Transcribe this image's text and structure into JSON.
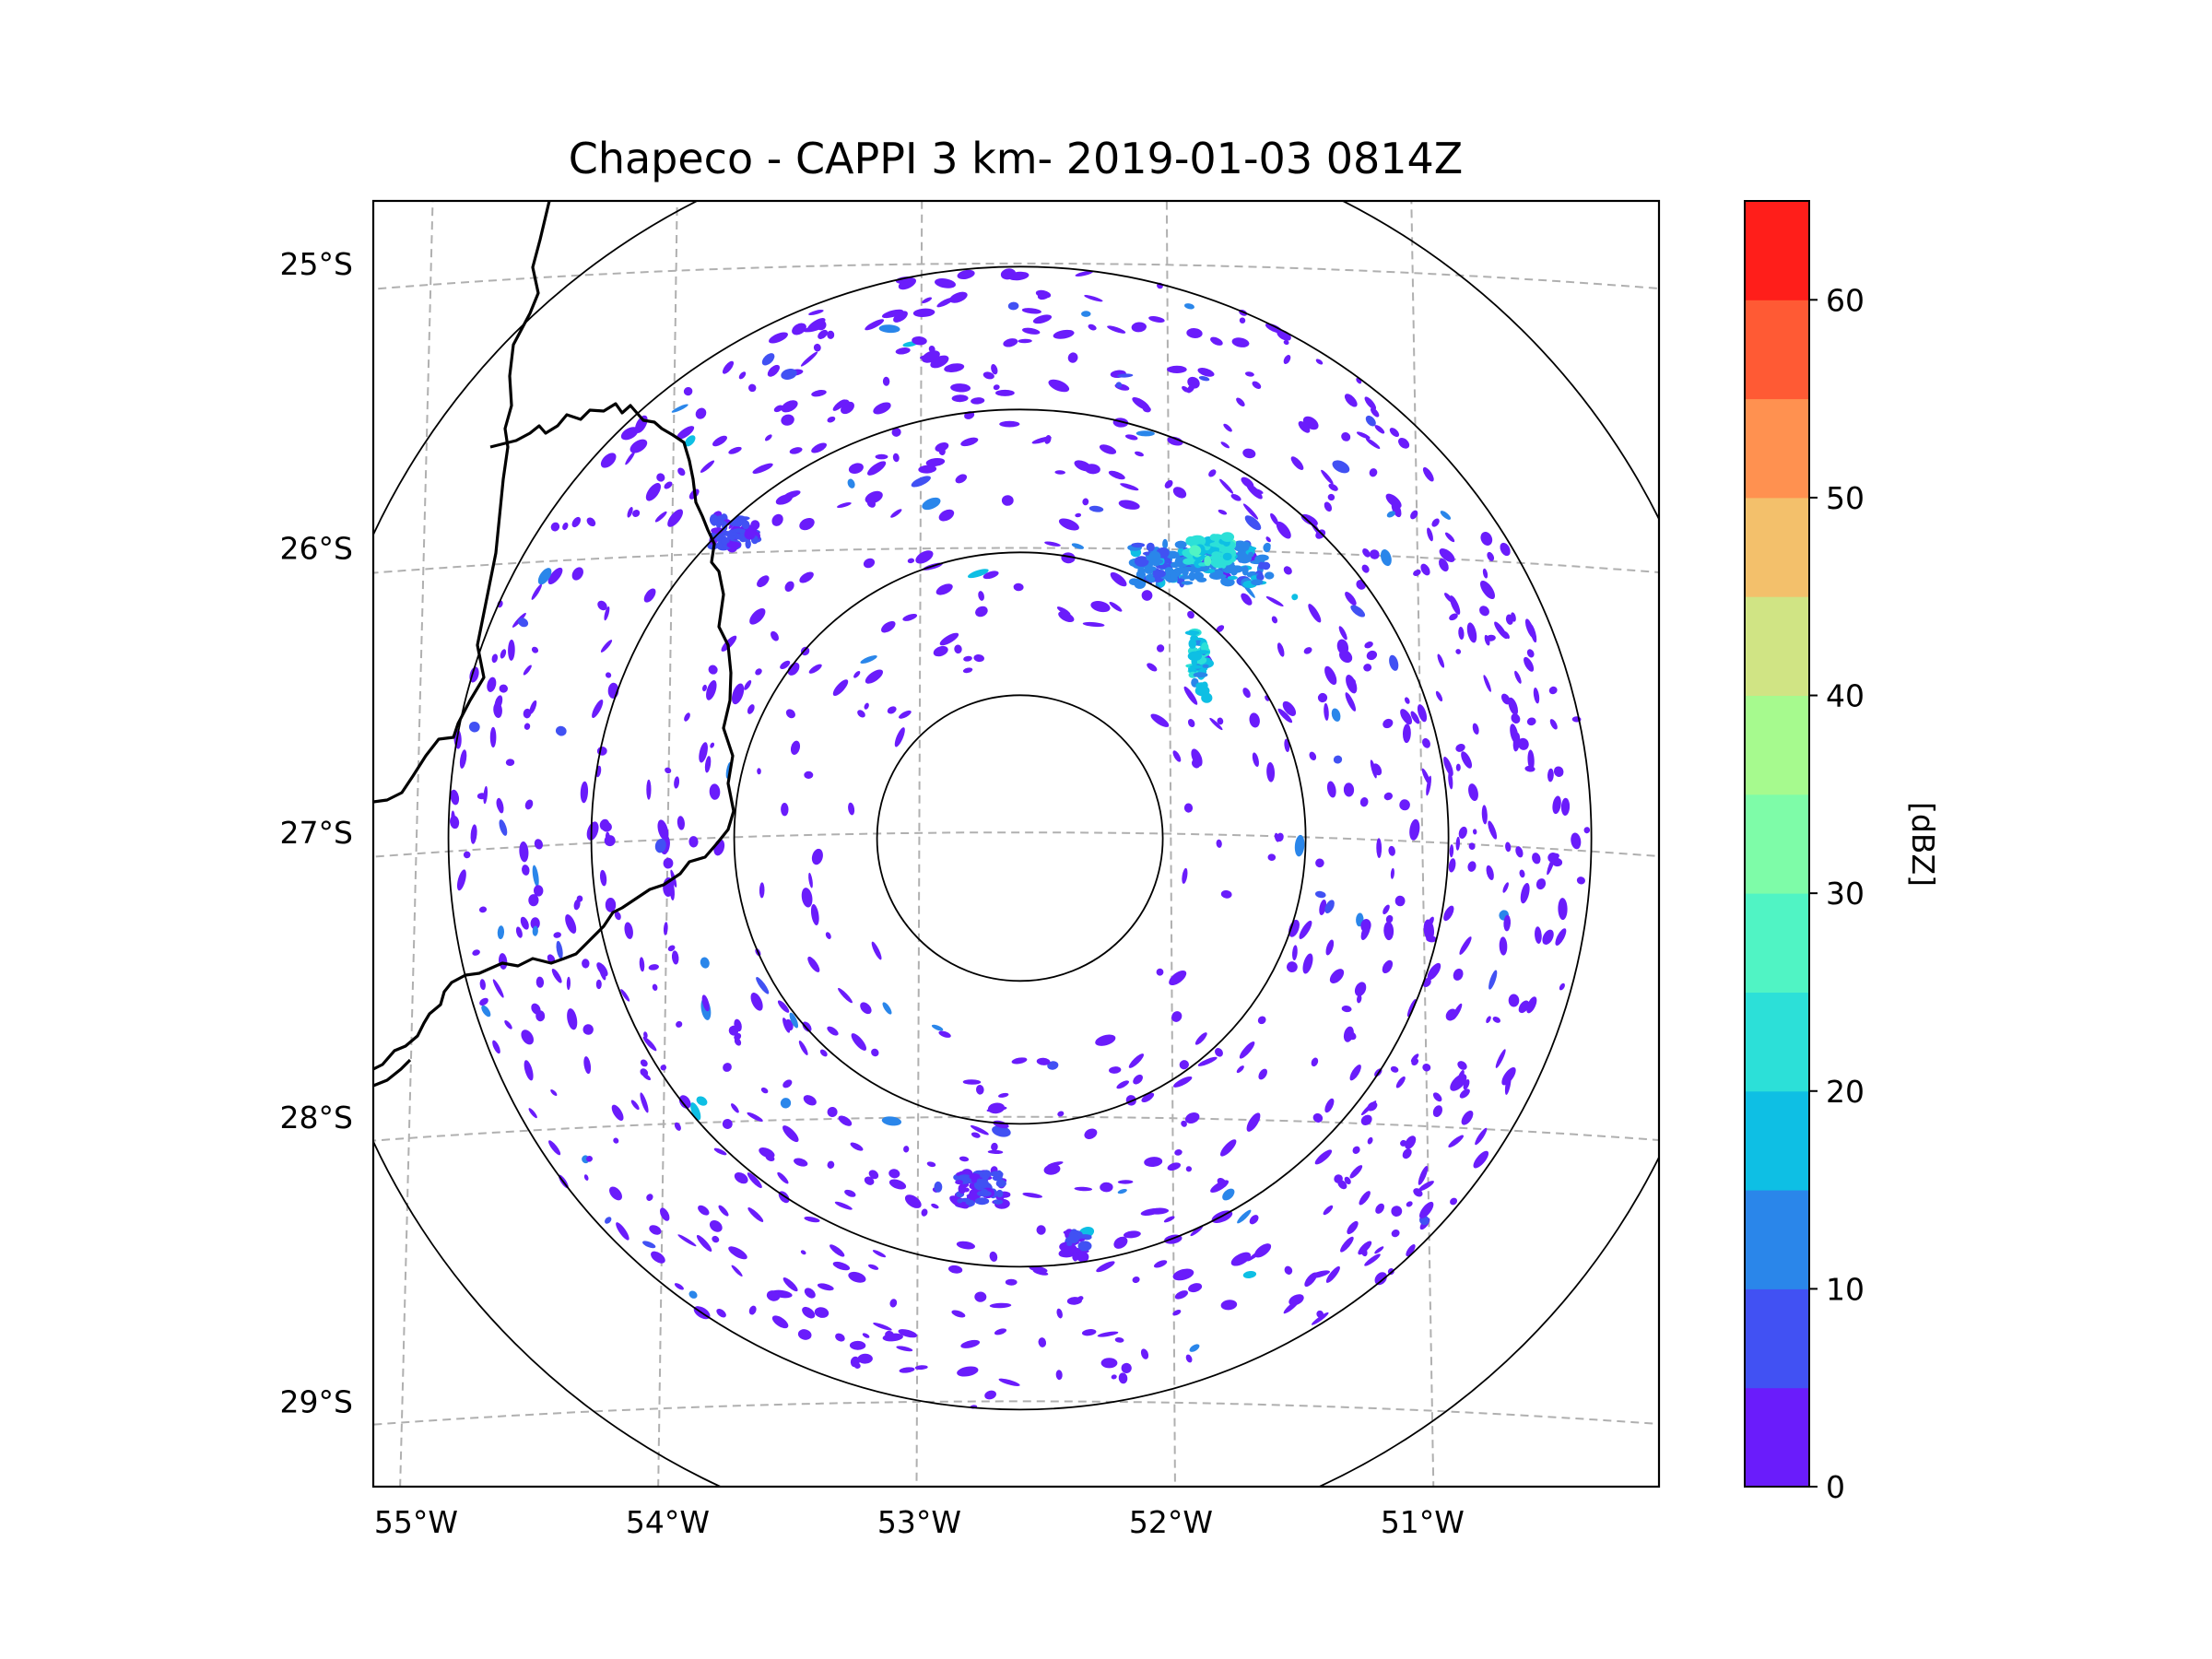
{
  "title": "Chapeco - CAPPI 3 km- 2019-01-03 0814Z",
  "map": {
    "lat_range": [
      -29.3,
      -24.78
    ],
    "lon_range": [
      -55.17,
      -50.06
    ],
    "radar_site": {
      "lon": -52.6,
      "lat": -27.02
    },
    "range_rings_km": [
      50,
      100,
      150,
      200,
      250
    ],
    "lat_labels": [
      {
        "value": -25,
        "text": "25°S"
      },
      {
        "value": -26,
        "text": "26°S"
      },
      {
        "value": -27,
        "text": "27°S"
      },
      {
        "value": -28,
        "text": "28°S"
      },
      {
        "value": -29,
        "text": "29°S"
      }
    ],
    "lon_labels": [
      {
        "value": -55,
        "text": "55°W"
      },
      {
        "value": -54,
        "text": "54°W"
      },
      {
        "value": -53,
        "text": "53°W"
      },
      {
        "value": -52,
        "text": "52°W"
      },
      {
        "value": -51,
        "text": "51°W"
      }
    ],
    "gridline_color": "#b0b0b0",
    "boundary_color": "#000000",
    "echo_clusters": [
      {
        "name": "north-east-cell",
        "lon": -51.87,
        "lat": -26.05,
        "dbz": 12,
        "size": "large"
      },
      {
        "name": "north-east-cell-core",
        "lon": -51.84,
        "lat": -26.0,
        "dbz": 22,
        "size": "medium"
      },
      {
        "name": "north-west-cell",
        "lon": -53.75,
        "lat": -25.93,
        "dbz": 6,
        "size": "medium"
      },
      {
        "name": "east-streak",
        "lon": -51.88,
        "lat": -26.4,
        "dbz": 18,
        "size": "streak"
      },
      {
        "name": "south-cell-1",
        "lon": -52.75,
        "lat": -28.25,
        "dbz": 5,
        "size": "medium"
      },
      {
        "name": "south-cell-2",
        "lon": -52.38,
        "lat": -28.45,
        "dbz": 4,
        "size": "small"
      }
    ]
  },
  "colorbar": {
    "label": "[dBZ]",
    "ticks": [
      {
        "value": 0,
        "text": "0"
      },
      {
        "value": 10,
        "text": "10"
      },
      {
        "value": 20,
        "text": "20"
      },
      {
        "value": 30,
        "text": "30"
      },
      {
        "value": 40,
        "text": "40"
      },
      {
        "value": 50,
        "text": "50"
      },
      {
        "value": 60,
        "text": "60"
      }
    ],
    "range": [
      0,
      65
    ],
    "bins": [
      {
        "from": 0,
        "to": 5,
        "color": "#6a1cfb"
      },
      {
        "from": 5,
        "to": 10,
        "color": "#4151f3"
      },
      {
        "from": 10,
        "to": 15,
        "color": "#2a86ea"
      },
      {
        "from": 15,
        "to": 20,
        "color": "#0ebfe4"
      },
      {
        "from": 20,
        "to": 25,
        "color": "#2ce0d8"
      },
      {
        "from": 25,
        "to": 30,
        "color": "#50f4c4"
      },
      {
        "from": 30,
        "to": 35,
        "color": "#7efca8"
      },
      {
        "from": 35,
        "to": 40,
        "color": "#a6fa8e"
      },
      {
        "from": 40,
        "to": 45,
        "color": "#d0e484"
      },
      {
        "from": 45,
        "to": 50,
        "color": "#f3c06b"
      },
      {
        "from": 50,
        "to": 55,
        "color": "#ff9150"
      },
      {
        "from": 55,
        "to": 60,
        "color": "#ff5a34"
      },
      {
        "from": 60,
        "to": 65,
        "color": "#ff1e1a"
      }
    ]
  }
}
